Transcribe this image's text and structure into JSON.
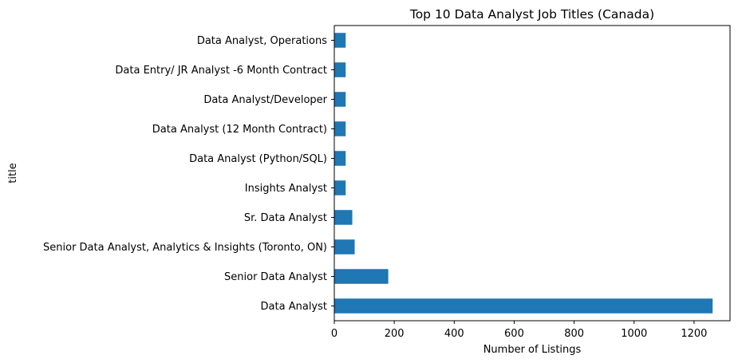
{
  "chart_data": {
    "type": "bar",
    "orientation": "horizontal",
    "title": "Top 10 Data Analyst Job Titles (Canada)",
    "xlabel": "Number of Listings",
    "ylabel": "title",
    "xlim": [
      0,
      1320
    ],
    "xticks": [
      0,
      200,
      400,
      600,
      800,
      1000,
      1200
    ],
    "grid": false,
    "categories": [
      "Data Analyst",
      "Senior Data Analyst",
      "Senior Data Analyst, Analytics & Insights (Toronto, ON)",
      "Sr. Data Analyst",
      "Insights Analyst",
      "Data Analyst (Python/SQL)",
      "Data Analyst (12 Month Contract)",
      "Data Analyst/Developer",
      "Data Entry/ JR Analyst -6 Month Contract",
      "Data Analyst, Operations"
    ],
    "values": [
      1262,
      180,
      68,
      60,
      38,
      38,
      38,
      38,
      38,
      38
    ],
    "bar_color": "#1f77b4"
  }
}
